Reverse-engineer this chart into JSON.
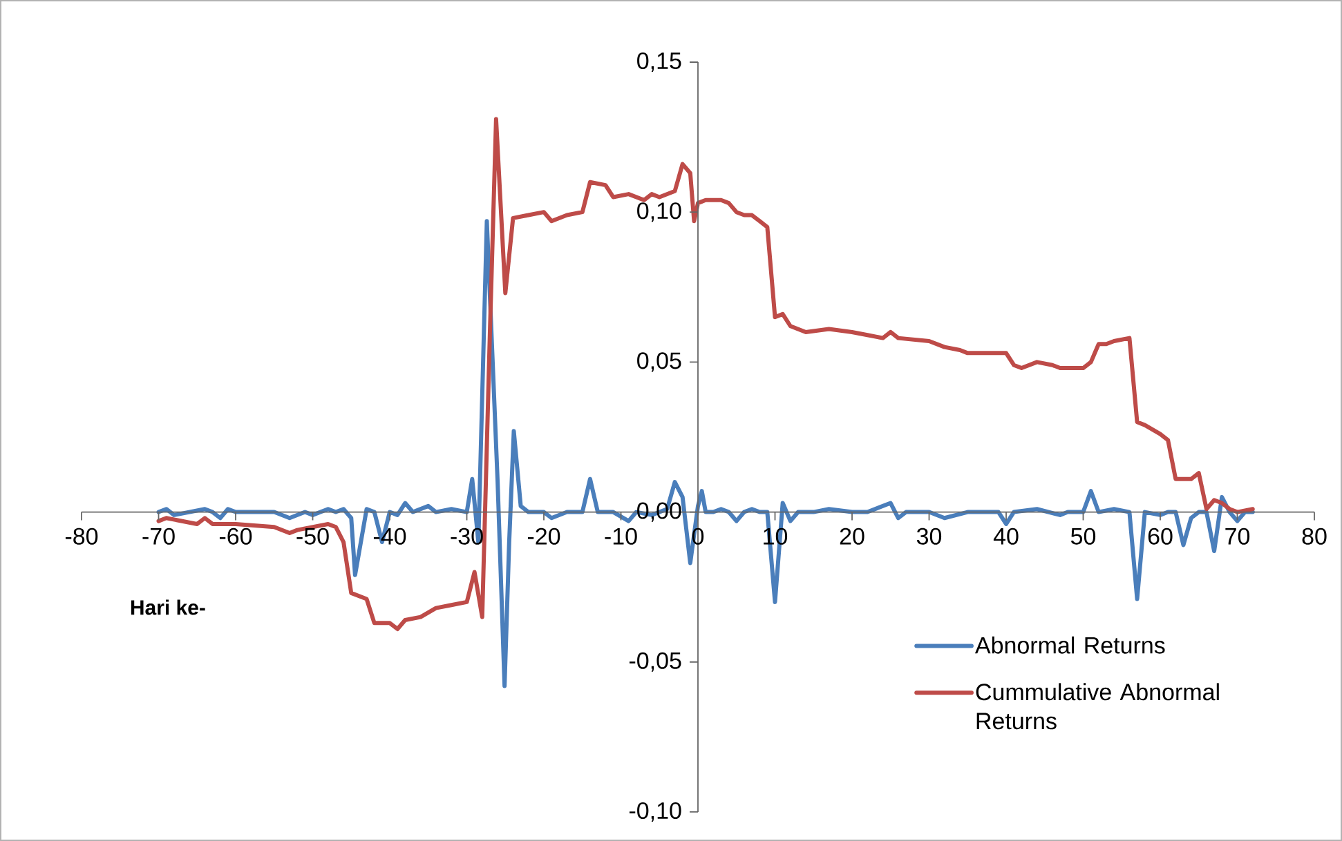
{
  "chart_data": {
    "type": "line",
    "xlabel": "Hari ke-",
    "xlim": [
      -80,
      80
    ],
    "xticks": [
      -80,
      -70,
      -60,
      -50,
      -40,
      -30,
      -20,
      -10,
      0,
      10,
      20,
      30,
      40,
      50,
      60,
      70,
      80
    ],
    "ylim": [
      -0.1,
      0.15
    ],
    "yticks": [
      {
        "value": -0.1,
        "label": "-0,10"
      },
      {
        "value": -0.05,
        "label": "-0,05"
      },
      {
        "value": 0,
        "label": "0,00"
      },
      {
        "value": 0.05,
        "label": "0,05"
      },
      {
        "value": 0.1,
        "label": "0,10"
      },
      {
        "value": 0.15,
        "label": "0,15"
      }
    ],
    "grid": false,
    "legend": "bottom right",
    "marker": "none",
    "line_style": "solid",
    "series": [
      {
        "name": "Abnormal Returns",
        "color": "#4a7ebb",
        "x": [
          -70,
          -69,
          -68,
          -66,
          -64,
          -63,
          -62,
          -61,
          -60,
          -55,
          -53,
          -51,
          -50,
          -48,
          -47,
          -46,
          -45,
          -44.5,
          -43,
          -42,
          -41,
          -40,
          -39,
          -38,
          -37,
          -35,
          -34,
          -32,
          -30,
          -29.3,
          -28.5,
          -27.4,
          -26,
          -25.1,
          -24.5,
          -23.9,
          -23,
          -22,
          -20,
          -19,
          -17,
          -15,
          -14,
          -13,
          -11,
          -9,
          -8,
          -6,
          -4,
          -3,
          -2,
          -1,
          0,
          0.5,
          1,
          2,
          3,
          4,
          5,
          6,
          7,
          8,
          9,
          10,
          11,
          12,
          13,
          15,
          17,
          20,
          22,
          25,
          26,
          27,
          30,
          32,
          35,
          37,
          39,
          40,
          41,
          44,
          47,
          48,
          50,
          51,
          52,
          54,
          56,
          57,
          58,
          60,
          61,
          62,
          63,
          64,
          65,
          66,
          67,
          68,
          69,
          70,
          71,
          72
        ],
        "values": [
          0.0,
          0.001,
          -0.001,
          0.0,
          0.001,
          0.0,
          -0.002,
          0.001,
          0.0,
          0.0,
          -0.002,
          0.0,
          -0.001,
          0.001,
          0.0,
          0.001,
          -0.002,
          -0.021,
          0.001,
          0.0,
          -0.01,
          0.0,
          -0.001,
          0.003,
          0.0,
          0.002,
          0.0,
          0.001,
          0.0,
          0.011,
          -0.01,
          0.097,
          0.01,
          -0.058,
          -0.01,
          0.027,
          0.002,
          0.0,
          0.0,
          -0.002,
          0.0,
          0.0,
          0.011,
          0.0,
          0.0,
          -0.003,
          0.0,
          -0.001,
          0.001,
          0.01,
          0.005,
          -0.017,
          0.002,
          0.007,
          0.0,
          0.0,
          0.001,
          0.0,
          -0.003,
          0.0,
          0.001,
          0.0,
          0.0,
          -0.03,
          0.003,
          -0.003,
          0.0,
          0.0,
          0.001,
          0.0,
          0.0,
          0.003,
          -0.002,
          0.0,
          0.0,
          -0.002,
          0.0,
          0.0,
          0.0,
          -0.004,
          0.0,
          0.001,
          -0.001,
          0.0,
          0.0,
          0.007,
          0.0,
          0.001,
          0.0,
          -0.029,
          0.0,
          -0.001,
          0.0,
          0.0,
          -0.011,
          -0.002,
          0.0,
          0.0,
          -0.013,
          0.005,
          0.0,
          -0.003,
          0.0,
          0.0
        ]
      },
      {
        "name": "Cummulative Abnormal Returns",
        "color": "#be4b48",
        "x": [
          -70,
          -69,
          -67,
          -65,
          -64,
          -63,
          -60,
          -55,
          -53,
          -52,
          -50,
          -48,
          -47,
          -46,
          -45,
          -44,
          -43,
          -42,
          -40,
          -39,
          -38,
          -36,
          -34,
          -32,
          -30,
          -29,
          -28,
          -27,
          -26.2,
          -25,
          -24,
          -22,
          -20,
          -19,
          -17,
          -15,
          -14,
          -12,
          -11,
          -9,
          -7,
          -6,
          -5,
          -3,
          -2,
          -1,
          -0.5,
          0,
          1,
          3,
          4,
          5,
          6,
          7,
          8,
          9,
          10,
          11,
          12,
          14,
          17,
          20,
          22,
          24,
          25,
          26,
          30,
          32,
          34,
          35,
          40,
          41,
          42,
          44,
          46,
          47,
          50,
          51,
          52,
          53,
          54,
          56,
          57,
          58,
          60,
          61,
          62,
          63,
          64,
          65,
          66,
          67,
          68,
          69,
          70,
          72
        ],
        "values": [
          -0.003,
          -0.002,
          -0.003,
          -0.004,
          -0.002,
          -0.004,
          -0.004,
          -0.005,
          -0.007,
          -0.006,
          -0.005,
          -0.004,
          -0.005,
          -0.01,
          -0.027,
          -0.028,
          -0.029,
          -0.037,
          -0.037,
          -0.039,
          -0.036,
          -0.035,
          -0.032,
          -0.031,
          -0.03,
          -0.02,
          -0.035,
          0.06,
          0.131,
          0.073,
          0.098,
          0.099,
          0.1,
          0.097,
          0.099,
          0.1,
          0.11,
          0.109,
          0.105,
          0.106,
          0.104,
          0.106,
          0.105,
          0.107,
          0.116,
          0.113,
          0.097,
          0.103,
          0.104,
          0.104,
          0.103,
          0.1,
          0.099,
          0.099,
          0.097,
          0.095,
          0.065,
          0.066,
          0.062,
          0.06,
          0.061,
          0.06,
          0.059,
          0.058,
          0.06,
          0.058,
          0.057,
          0.055,
          0.054,
          0.053,
          0.053,
          0.049,
          0.048,
          0.05,
          0.049,
          0.048,
          0.048,
          0.05,
          0.056,
          0.056,
          0.057,
          0.058,
          0.03,
          0.029,
          0.026,
          0.024,
          0.011,
          0.011,
          0.011,
          0.013,
          0.001,
          0.004,
          0.003,
          0.001,
          0.0,
          0.001
        ]
      }
    ]
  }
}
